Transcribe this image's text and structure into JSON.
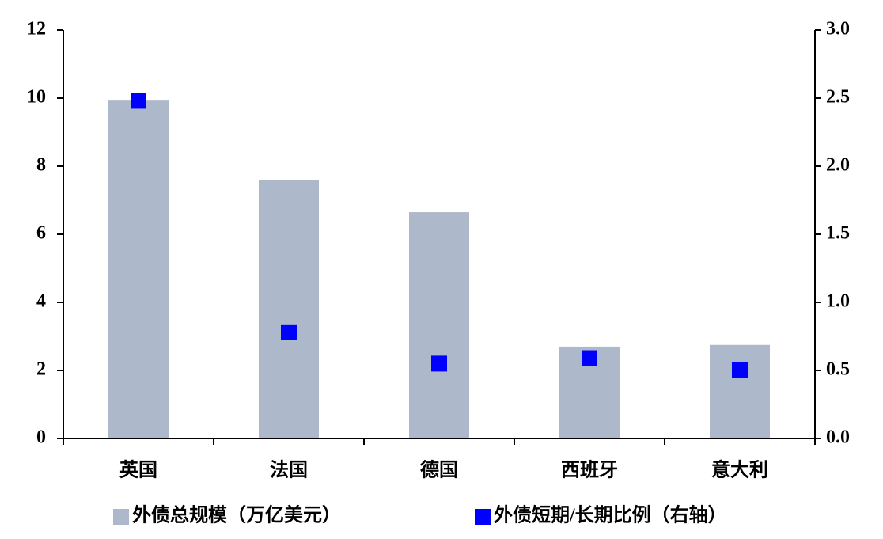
{
  "chart_data": {
    "type": "bar",
    "categories": [
      "英国",
      "法国",
      "德国",
      "西班牙",
      "意大利"
    ],
    "series": [
      {
        "name": "外债总规模（万亿美元）",
        "color": "#adb9ca",
        "values": [
          9.95,
          7.6,
          6.65,
          2.7,
          2.75
        ]
      },
      {
        "name": "外债短期/长期比例（右轴）",
        "color": "#0000ff",
        "type": "scatter",
        "axis": "y2",
        "values": [
          2.48,
          0.78,
          0.55,
          0.59,
          0.5
        ]
      }
    ],
    "ylim": [
      0,
      12
    ],
    "yticks": [
      0,
      2,
      4,
      6,
      8,
      10,
      12
    ],
    "y2lim": [
      0,
      3
    ],
    "y2ticks": [
      {
        "value": 0,
        "label": "0.0"
      },
      {
        "value": 0.5,
        "label": "0.5"
      },
      {
        "value": 1,
        "label": "1.0"
      },
      {
        "value": 1.5,
        "label": "1.5"
      },
      {
        "value": 2,
        "label": "2.0"
      },
      {
        "value": 2.5,
        "label": "2.5"
      },
      {
        "value": 3,
        "label": "3.0"
      }
    ],
    "legend": "bottom"
  }
}
